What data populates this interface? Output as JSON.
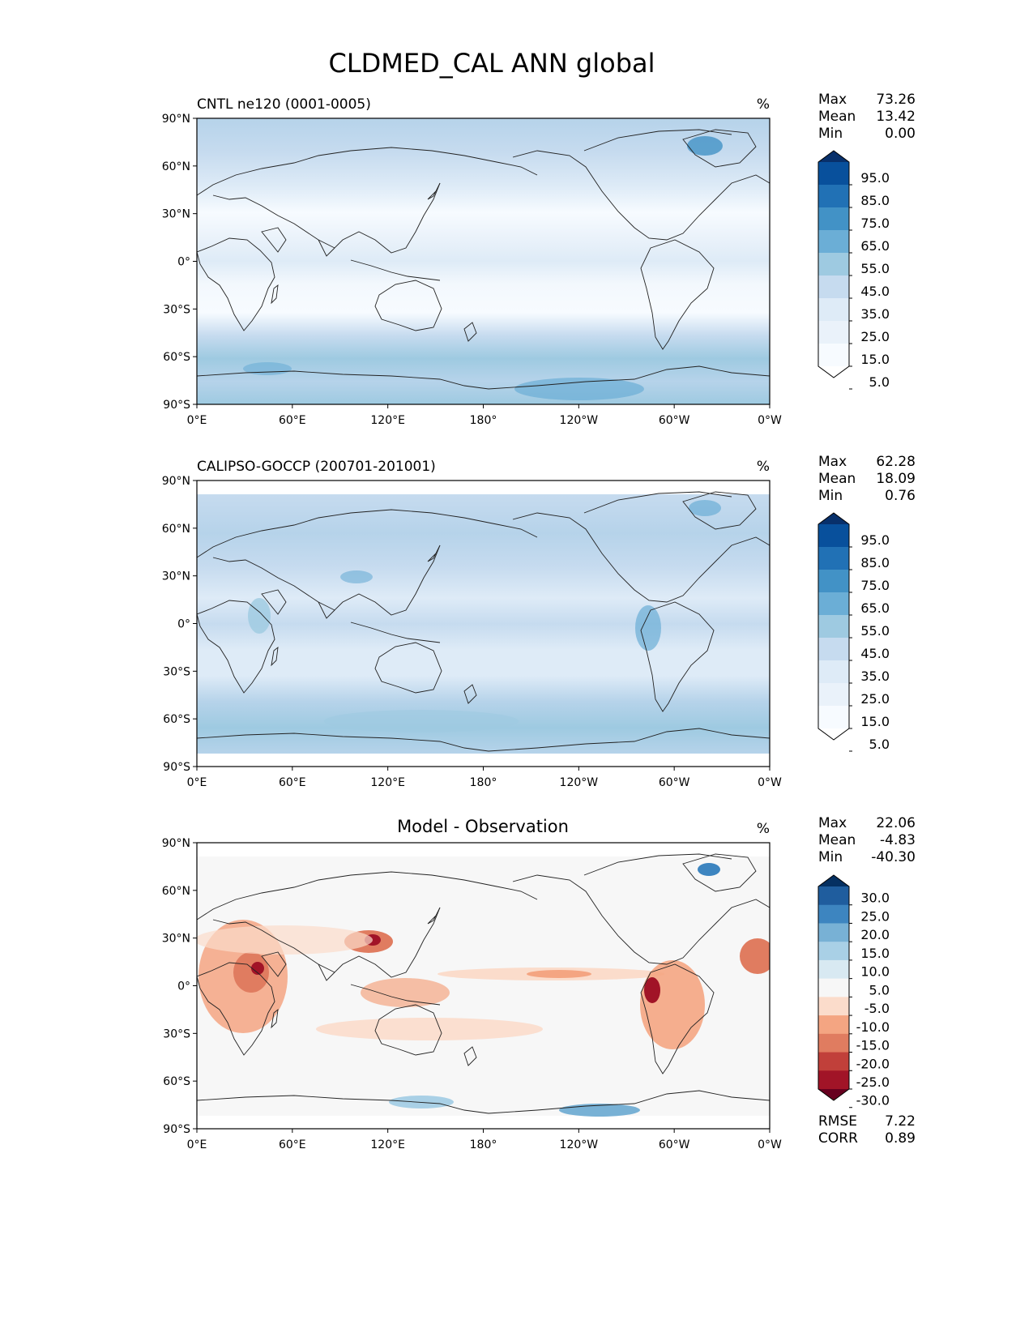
{
  "figure": {
    "title": "CLDMED_CAL ANN global"
  },
  "axes": {
    "lat_ticks": [
      "90°N",
      "60°N",
      "30°N",
      "0°",
      "30°S",
      "60°S",
      "90°S"
    ],
    "lon_ticks": [
      "0°E",
      "60°E",
      "120°E",
      "180°",
      "120°W",
      "60°W",
      "0°W"
    ]
  },
  "chart_data": [
    {
      "type": "heatmap",
      "id": "model",
      "title": "CNTL ne120 (0001-0005)",
      "units": "%",
      "stats": {
        "max_label": "Max",
        "max": "73.26",
        "mean_label": "Mean",
        "mean": "13.42",
        "min_label": "Min",
        "min": "0.00"
      },
      "colorbar": {
        "levels": [
          "95.0",
          "85.0",
          "75.0",
          "65.0",
          "55.0",
          "45.0",
          "35.0",
          "25.0",
          "15.0",
          "5.0"
        ],
        "colors": [
          "#08306b",
          "#08509c",
          "#2171b5",
          "#4292c6",
          "#6baed6",
          "#9ecae1",
          "#c6dbef",
          "#deebf7",
          "#eaf2fa",
          "#f7fbff",
          "#ffffff"
        ]
      },
      "lat_range": [
        -90,
        90
      ],
      "lon_range": [
        0,
        360
      ]
    },
    {
      "type": "heatmap",
      "id": "obs",
      "title": "CALIPSO-GOCCP (200701-201001)",
      "units": "%",
      "stats": {
        "max_label": "Max",
        "max": "62.28",
        "mean_label": "Mean",
        "mean": "18.09",
        "min_label": "Min",
        "min": "0.76"
      },
      "colorbar": {
        "levels": [
          "95.0",
          "85.0",
          "75.0",
          "65.0",
          "55.0",
          "45.0",
          "35.0",
          "25.0",
          "15.0",
          "5.0"
        ],
        "colors": [
          "#08306b",
          "#08509c",
          "#2171b5",
          "#4292c6",
          "#6baed6",
          "#9ecae1",
          "#c6dbef",
          "#deebf7",
          "#eaf2fa",
          "#f7fbff",
          "#ffffff"
        ]
      },
      "lat_range": [
        -82,
        82
      ],
      "lon_range": [
        0,
        360
      ]
    },
    {
      "type": "heatmap",
      "id": "diff",
      "title": "Model - Observation",
      "units": "%",
      "stats": {
        "max_label": "Max",
        "max": "22.06",
        "mean_label": "Mean",
        "mean": "-4.83",
        "min_label": "Min",
        "min": "-40.30"
      },
      "metrics": {
        "rmse_label": "RMSE",
        "rmse": "7.22",
        "corr_label": "CORR",
        "corr": "0.89"
      },
      "colorbar": {
        "levels": [
          "30.0",
          "25.0",
          "20.0",
          "15.0",
          "10.0",
          "5.0",
          "-5.0",
          "-10.0",
          "-15.0",
          "-20.0",
          "-25.0",
          "-30.0"
        ],
        "colors": [
          "#053061",
          "#1f5d9e",
          "#3d85c0",
          "#78b1d5",
          "#a9d0e6",
          "#d8e9f2",
          "#f7f7f7",
          "#fbdccb",
          "#f4a582",
          "#e07c60",
          "#c1403a",
          "#a11427",
          "#67001f"
        ]
      },
      "lat_range": [
        -82,
        82
      ],
      "lon_range": [
        0,
        360
      ]
    }
  ]
}
